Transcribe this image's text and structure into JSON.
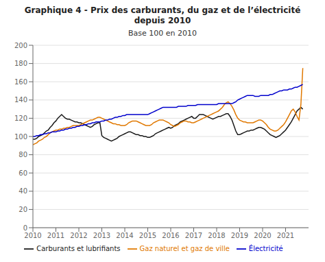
{
  "chart_data": {
    "type": "line",
    "title": "Graphique 4 - Prix des carburants, du gaz et de l’électricité depuis 2010",
    "subtitle": "Base 100 en 2010",
    "x": [
      2010,
      2010.083333,
      2010.166667,
      2010.25,
      2010.333333,
      2010.416667,
      2010.5,
      2010.583333,
      2010.666667,
      2010.75,
      2010.833333,
      2010.916667,
      2011,
      2011.083333,
      2011.166667,
      2011.25,
      2011.333333,
      2011.416667,
      2011.5,
      2011.583333,
      2011.666667,
      2011.75,
      2011.833333,
      2011.916667,
      2012,
      2012.083333,
      2012.166667,
      2012.25,
      2012.333333,
      2012.416667,
      2012.5,
      2012.583333,
      2012.666667,
      2012.75,
      2012.833333,
      2012.916667,
      2013,
      2013.083333,
      2013.166667,
      2013.25,
      2013.333333,
      2013.416667,
      2013.5,
      2013.583333,
      2013.666667,
      2013.75,
      2013.833333,
      2013.916667,
      2014,
      2014.083333,
      2014.166667,
      2014.25,
      2014.333333,
      2014.416667,
      2014.5,
      2014.583333,
      2014.666667,
      2014.75,
      2014.833333,
      2014.916667,
      2015,
      2015.083333,
      2015.166667,
      2015.25,
      2015.333333,
      2015.416667,
      2015.5,
      2015.583333,
      2015.666667,
      2015.75,
      2015.833333,
      2015.916667,
      2016,
      2016.083333,
      2016.166667,
      2016.25,
      2016.333333,
      2016.416667,
      2016.5,
      2016.583333,
      2016.666667,
      2016.75,
      2016.833333,
      2016.916667,
      2017,
      2017.083333,
      2017.166667,
      2017.25,
      2017.333333,
      2017.416667,
      2017.5,
      2017.583333,
      2017.666667,
      2017.75,
      2017.833333,
      2017.916667,
      2018,
      2018.083333,
      2018.166667,
      2018.25,
      2018.333333,
      2018.416667,
      2018.5,
      2018.583333,
      2018.666667,
      2018.75,
      2018.833333,
      2018.916667,
      2019,
      2019.083333,
      2019.166667,
      2019.25,
      2019.333333,
      2019.416667,
      2019.5,
      2019.583333,
      2019.666667,
      2019.75,
      2019.833333,
      2019.916667,
      2020,
      2020.083333,
      2020.166667,
      2020.25,
      2020.333333,
      2020.416667,
      2020.5,
      2020.583333,
      2020.666667,
      2020.75,
      2020.833333,
      2020.916667,
      2021,
      2021.083333,
      2021.166667,
      2021.25,
      2021.333333,
      2021.416667,
      2021.5,
      2021.583333,
      2021.666667,
      2021.75
    ],
    "series": [
      {
        "name": "Carburants et lubrifiants",
        "color": "#1a1a1a",
        "values": [
          97,
          97,
          98,
          100,
          101,
          102,
          104,
          106,
          107,
          110,
          112,
          115,
          117,
          120,
          122,
          124,
          122,
          120,
          119,
          119,
          118,
          117,
          116,
          116,
          115,
          115,
          114,
          113,
          112,
          111,
          110,
          111,
          113,
          114,
          115,
          115,
          101,
          99,
          98,
          97,
          96,
          95,
          96,
          97,
          98,
          100,
          101,
          102,
          103,
          104,
          105,
          105,
          104,
          103,
          102,
          102,
          101,
          101,
          100,
          100,
          99,
          99,
          100,
          101,
          103,
          104,
          105,
          106,
          107,
          108,
          109,
          110,
          109,
          110,
          112,
          113,
          114,
          116,
          117,
          118,
          119,
          120,
          121,
          122,
          120,
          120,
          122,
          124,
          124,
          124,
          123,
          122,
          121,
          120,
          119,
          120,
          121,
          122,
          122,
          123,
          124,
          125,
          125,
          122,
          118,
          112,
          106,
          102,
          102,
          103,
          104,
          105,
          106,
          106,
          107,
          107,
          108,
          109,
          110,
          110,
          109,
          108,
          106,
          104,
          102,
          101,
          100,
          99,
          100,
          101,
          103,
          105,
          107,
          110,
          113,
          116,
          120,
          124,
          128,
          130,
          132,
          130
        ]
      },
      {
        "name": "Gaz naturel et gaz de ville",
        "color": "#e07800",
        "values": [
          91,
          92,
          93,
          95,
          96,
          97,
          99,
          100,
          102,
          104,
          105,
          106,
          107,
          107,
          108,
          108,
          109,
          109,
          110,
          110,
          111,
          112,
          112,
          112,
          112,
          113,
          114,
          115,
          116,
          117,
          118,
          118,
          119,
          120,
          121,
          121,
          120,
          119,
          118,
          117,
          116,
          115,
          114,
          114,
          113,
          113,
          112,
          112,
          112,
          113,
          115,
          116,
          117,
          117,
          117,
          116,
          115,
          114,
          113,
          112,
          112,
          112,
          113,
          115,
          116,
          117,
          118,
          118,
          118,
          117,
          116,
          115,
          113,
          112,
          111,
          112,
          113,
          115,
          116,
          117,
          117,
          116,
          116,
          115,
          115,
          116,
          117,
          118,
          119,
          120,
          121,
          122,
          123,
          124,
          125,
          126,
          127,
          128,
          130,
          132,
          135,
          137,
          138,
          136,
          133,
          129,
          124,
          120,
          118,
          117,
          116,
          116,
          115,
          115,
          115,
          115,
          116,
          117,
          118,
          118,
          117,
          115,
          113,
          110,
          108,
          107,
          106,
          106,
          107,
          109,
          111,
          113,
          116,
          120,
          124,
          128,
          130,
          127,
          122,
          118,
          135,
          175
        ]
      },
      {
        "name": "Électricité",
        "color": "#0000cc",
        "values": [
          100,
          100,
          101,
          101,
          102,
          102,
          103,
          103,
          104,
          104,
          105,
          105,
          105,
          106,
          106,
          107,
          107,
          108,
          108,
          109,
          109,
          110,
          110,
          111,
          111,
          112,
          112,
          113,
          113,
          114,
          114,
          115,
          115,
          116,
          116,
          116,
          117,
          117,
          118,
          118,
          119,
          119,
          120,
          121,
          121,
          122,
          122,
          123,
          123,
          124,
          124,
          124,
          124,
          124,
          124,
          124,
          124,
          124,
          124,
          124,
          124,
          125,
          126,
          127,
          128,
          129,
          130,
          131,
          132,
          132,
          132,
          132,
          132,
          132,
          132,
          132,
          133,
          133,
          133,
          133,
          133,
          134,
          134,
          134,
          134,
          134,
          135,
          135,
          135,
          135,
          135,
          135,
          135,
          135,
          135,
          135,
          135,
          136,
          136,
          136,
          136,
          136,
          136,
          136,
          136,
          137,
          138,
          140,
          141,
          142,
          143,
          144,
          145,
          145,
          145,
          145,
          144,
          144,
          144,
          145,
          145,
          145,
          145,
          145,
          146,
          146,
          147,
          148,
          149,
          150,
          150,
          151,
          151,
          151,
          152,
          152,
          153,
          154,
          154,
          155,
          156,
          157
        ]
      }
    ],
    "xlim": [
      2010,
      2022
    ],
    "xticks": [
      2010,
      2011,
      2012,
      2013,
      2014,
      2015,
      2016,
      2017,
      2018,
      2019,
      2020,
      2021
    ],
    "ylim": [
      0,
      200
    ],
    "yticks": [
      0,
      20,
      40,
      60,
      80,
      100,
      120,
      140,
      160,
      180,
      200
    ],
    "grid": true,
    "legend": "bottom"
  }
}
